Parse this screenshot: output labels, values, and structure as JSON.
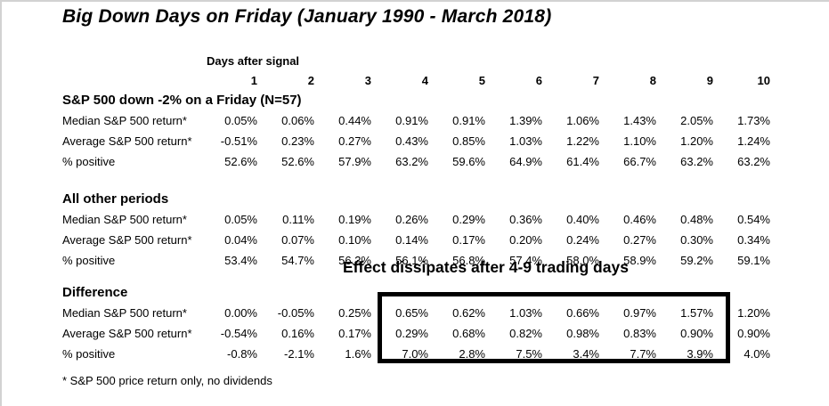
{
  "title": "Big Down Days on Friday (January 1990 - March 2018)",
  "annotation": {
    "text": "Effect dissipates after 4-9 trading days",
    "applies_to_columns": "4-9",
    "box_color": "#000000"
  },
  "footnote": "* S&P 500 price return only, no dividends",
  "colors": {
    "text": "#000000",
    "background": "#ffffff",
    "highlight_box": "#000000",
    "frame_border": "#d2d2d2"
  },
  "chart_data": {
    "type": "table",
    "title": "Big Down Days on Friday (January 1990 - March 2018)",
    "column_group_label": "Days after signal",
    "columns": [
      "1",
      "2",
      "3",
      "4",
      "5",
      "6",
      "7",
      "8",
      "9",
      "10"
    ],
    "sections": [
      {
        "header": "S&P 500 down -2% on a Friday (N=57)",
        "rows": [
          {
            "label": "Median S&P 500 return*",
            "values": [
              "0.05%",
              "0.06%",
              "0.44%",
              "0.91%",
              "0.91%",
              "1.39%",
              "1.06%",
              "1.43%",
              "2.05%",
              "1.73%"
            ]
          },
          {
            "label": "Average S&P 500 return*",
            "values": [
              "-0.51%",
              "0.23%",
              "0.27%",
              "0.43%",
              "0.85%",
              "1.03%",
              "1.22%",
              "1.10%",
              "1.20%",
              "1.24%"
            ]
          },
          {
            "label": "% positive",
            "values": [
              "52.6%",
              "52.6%",
              "57.9%",
              "63.2%",
              "59.6%",
              "64.9%",
              "61.4%",
              "66.7%",
              "63.2%",
              "63.2%"
            ]
          }
        ]
      },
      {
        "header": "All other periods",
        "rows": [
          {
            "label": "Median S&P 500 return*",
            "values": [
              "0.05%",
              "0.11%",
              "0.19%",
              "0.26%",
              "0.29%",
              "0.36%",
              "0.40%",
              "0.46%",
              "0.48%",
              "0.54%"
            ]
          },
          {
            "label": "Average S&P 500 return*",
            "values": [
              "0.04%",
              "0.07%",
              "0.10%",
              "0.14%",
              "0.17%",
              "0.20%",
              "0.24%",
              "0.27%",
              "0.30%",
              "0.34%"
            ]
          },
          {
            "label": "% positive",
            "values": [
              "53.4%",
              "54.7%",
              "56.3%",
              "56.1%",
              "56.8%",
              "57.4%",
              "58.0%",
              "58.9%",
              "59.2%",
              "59.1%"
            ]
          }
        ]
      },
      {
        "header": "Difference",
        "rows": [
          {
            "label": "Median S&P 500 return*",
            "values": [
              "0.00%",
              "-0.05%",
              "0.25%",
              "0.65%",
              "0.62%",
              "1.03%",
              "0.66%",
              "0.97%",
              "1.57%",
              "1.20%"
            ]
          },
          {
            "label": "Average S&P 500 return*",
            "values": [
              "-0.54%",
              "0.16%",
              "0.17%",
              "0.29%",
              "0.68%",
              "0.82%",
              "0.98%",
              "0.83%",
              "0.90%",
              "0.90%"
            ]
          },
          {
            "label": "% positive",
            "values": [
              "-0.8%",
              "-2.1%",
              "1.6%",
              "7.0%",
              "2.8%",
              "7.5%",
              "3.4%",
              "7.7%",
              "3.9%",
              "4.0%"
            ]
          }
        ]
      }
    ],
    "footnote": "* S&P 500 price return only, no dividends"
  }
}
